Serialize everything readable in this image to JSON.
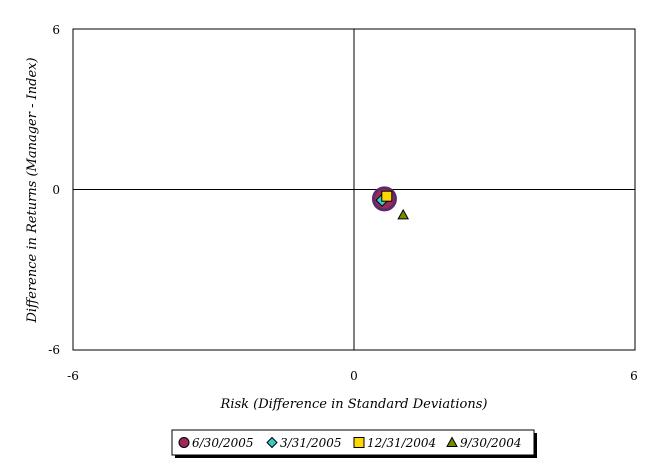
{
  "chart_data": {
    "type": "scatter",
    "xlabel": "Risk (Difference in Standard Deviations)",
    "ylabel": "Difference in Returns (Manager - Index)",
    "xlim": [
      -6,
      6
    ],
    "ylim": [
      -6,
      6
    ],
    "x_ticks": [
      "-6",
      "0",
      "6"
    ],
    "y_ticks": [
      "6",
      "0",
      "-6"
    ],
    "grid": false,
    "legend_position": "bottom",
    "series": [
      {
        "name": "6/30/2005",
        "marker": "circle",
        "color": "#9b2a5a",
        "points": [
          {
            "x": 0.65,
            "y": -0.35
          }
        ]
      },
      {
        "name": "3/31/2005",
        "marker": "diamond",
        "color": "#33cccc",
        "points": [
          {
            "x": 0.6,
            "y": -0.4
          }
        ]
      },
      {
        "name": "12/31/2004",
        "marker": "square",
        "color": "#ffd700",
        "points": [
          {
            "x": 0.7,
            "y": -0.25
          }
        ]
      },
      {
        "name": "9/30/2004",
        "marker": "triangle",
        "color": "#7a8a00",
        "points": [
          {
            "x": 1.05,
            "y": -0.95
          }
        ]
      }
    ]
  }
}
